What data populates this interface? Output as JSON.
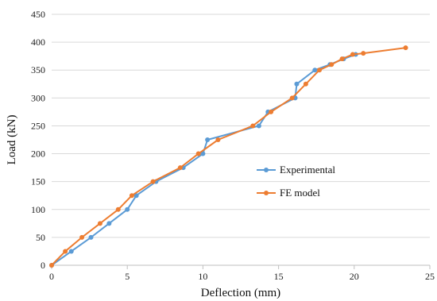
{
  "chart_data": {
    "type": "line",
    "title": "",
    "xlabel": "Deflection (mm)",
    "ylabel": "Load (kN)",
    "xlim": [
      0,
      25
    ],
    "ylim": [
      0,
      450
    ],
    "x_ticks": [
      0,
      5,
      10,
      15,
      20,
      25
    ],
    "y_ticks": [
      0,
      50,
      100,
      150,
      200,
      250,
      300,
      350,
      400,
      450
    ],
    "grid": "horizontal",
    "legend_position": "center-right",
    "series": [
      {
        "name": "Experimental",
        "color": "#5b9bd5",
        "points": [
          [
            0,
            0
          ],
          [
            1.3,
            25
          ],
          [
            2.6,
            50
          ],
          [
            3.8,
            75
          ],
          [
            5.0,
            100
          ],
          [
            5.6,
            125
          ],
          [
            6.9,
            150
          ],
          [
            8.7,
            175
          ],
          [
            10.0,
            200
          ],
          [
            10.3,
            225
          ],
          [
            13.7,
            250
          ],
          [
            14.3,
            275
          ],
          [
            16.1,
            300
          ],
          [
            16.2,
            325
          ],
          [
            17.4,
            350
          ],
          [
            18.4,
            360
          ],
          [
            19.3,
            370
          ],
          [
            20.1,
            378
          ]
        ]
      },
      {
        "name": "FE model",
        "color": "#ed7d31",
        "points": [
          [
            0,
            0
          ],
          [
            0.9,
            25
          ],
          [
            2.0,
            50
          ],
          [
            3.2,
            75
          ],
          [
            4.4,
            100
          ],
          [
            5.3,
            125
          ],
          [
            6.7,
            150
          ],
          [
            8.5,
            175
          ],
          [
            9.7,
            200
          ],
          [
            11.0,
            225
          ],
          [
            13.3,
            250
          ],
          [
            14.5,
            275
          ],
          [
            15.9,
            300
          ],
          [
            16.8,
            325
          ],
          [
            17.7,
            350
          ],
          [
            18.5,
            360
          ],
          [
            19.2,
            370
          ],
          [
            19.9,
            378
          ],
          [
            20.6,
            380
          ],
          [
            23.4,
            390
          ]
        ]
      }
    ]
  }
}
